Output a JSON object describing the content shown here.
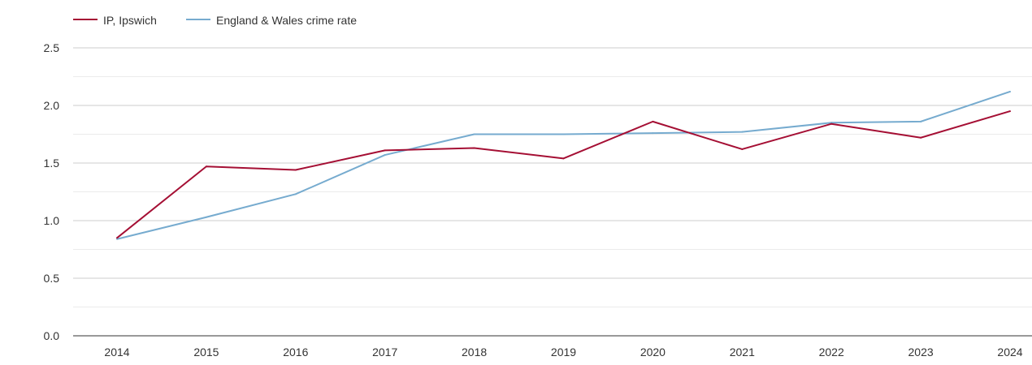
{
  "chart_data": {
    "type": "line",
    "title": "",
    "xlabel": "",
    "ylabel": "",
    "x": [
      "2014",
      "2015",
      "2016",
      "2017",
      "2018",
      "2019",
      "2020",
      "2021",
      "2022",
      "2023",
      "2024"
    ],
    "ylim": [
      0,
      2.5
    ],
    "y_ticks": [
      "0.0",
      "0.5",
      "1.0",
      "1.5",
      "2.0",
      "2.5"
    ],
    "y_tick_values": [
      0,
      0.5,
      1.0,
      1.5,
      2.0,
      2.5
    ],
    "y_minor_grid": [
      0.25,
      0.75,
      1.25,
      1.75,
      2.25
    ],
    "grid": true,
    "legend_position": "top-left",
    "series": [
      {
        "name": "IP, Ipswich",
        "color": "#a50f34",
        "values": [
          0.85,
          1.47,
          1.44,
          1.61,
          1.63,
          1.54,
          1.86,
          1.62,
          1.84,
          1.72,
          1.95
        ]
      },
      {
        "name": "England & Wales crime rate",
        "color": "#76abcf",
        "values": [
          0.84,
          1.03,
          1.23,
          1.57,
          1.75,
          1.75,
          1.76,
          1.77,
          1.85,
          1.86,
          2.12
        ]
      }
    ]
  }
}
